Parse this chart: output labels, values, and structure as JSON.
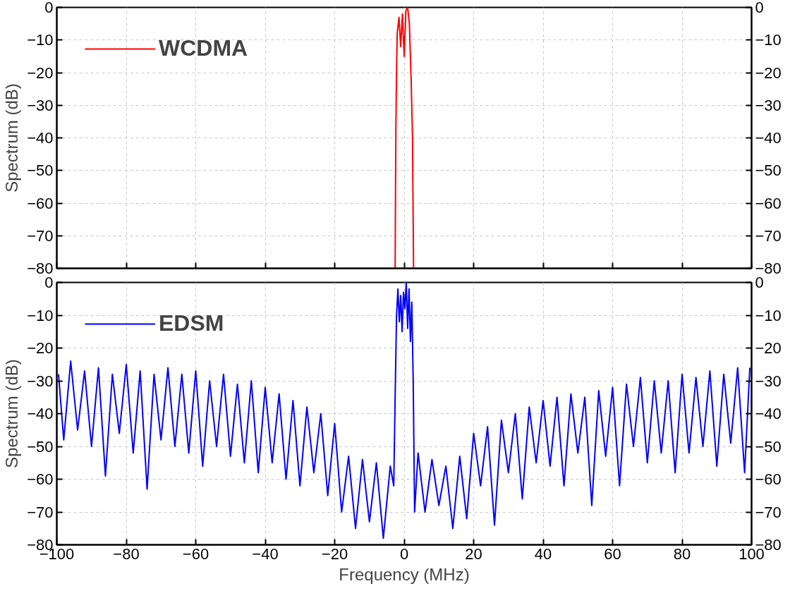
{
  "chart_data": [
    {
      "type": "line",
      "ylabel": "Spectrum (dB)",
      "xlim": [
        -100,
        100
      ],
      "xticks": [
        -100,
        -80,
        -60,
        -40,
        -20,
        0,
        20,
        40,
        60,
        80,
        100
      ],
      "ylim": [
        -80,
        0
      ],
      "yticks": [
        -80,
        -70,
        -60,
        -50,
        -40,
        -30,
        -20,
        -10,
        0
      ],
      "y2lim": [
        -80,
        0
      ],
      "y2ticks": [
        -80,
        -70,
        -60,
        -50,
        -40,
        -30,
        -20,
        -10,
        0
      ],
      "tick_labels": "y",
      "grid": true,
      "legend": "top left",
      "x": [
        -2.6,
        -2.4,
        -2.2,
        -2,
        -1.5,
        -1,
        -0.5,
        0,
        0.5,
        1,
        1.5,
        2,
        2.4,
        2.7
      ],
      "series": [
        {
          "name": "WCDMA",
          "color": "#ff0000",
          "values": [
            -80,
            -38,
            -20,
            -8,
            -3,
            -12,
            -2,
            -15,
            -1,
            0,
            -5,
            -22,
            -40,
            -80
          ]
        }
      ]
    },
    {
      "type": "line",
      "xlabel": "Frequency (MHz)",
      "ylabel": "Spectrum (dB)",
      "xlim": [
        -100,
        100
      ],
      "xticks": [
        -100,
        -80,
        -60,
        -40,
        -20,
        0,
        20,
        40,
        60,
        80,
        100
      ],
      "ylim": [
        -80,
        0
      ],
      "yticks": [
        -80,
        -70,
        -60,
        -50,
        -40,
        -30,
        -20,
        -10,
        0
      ],
      "y2lim": [
        -80,
        0
      ],
      "y2ticks": [
        -80,
        -70,
        -60,
        -50,
        -40,
        -30,
        -20,
        -10,
        0
      ],
      "grid": true,
      "legend": "top left",
      "x": [
        -99.5,
        -98,
        -96,
        -94,
        -92,
        -90,
        -88,
        -86,
        -84,
        -82,
        -80,
        -78,
        -76,
        -74,
        -72,
        -70,
        -68,
        -66,
        -64,
        -62,
        -60,
        -58,
        -56,
        -54,
        -52,
        -50,
        -48,
        -46,
        -44,
        -42,
        -40,
        -38,
        -36,
        -34,
        -32,
        -30,
        -28,
        -26,
        -24,
        -22,
        -20,
        -18,
        -16,
        -14,
        -12,
        -10,
        -8,
        -6,
        -4,
        -3,
        -2.6,
        -2.2,
        -1.8,
        -1.4,
        -1,
        -0.6,
        -0.2,
        0.2,
        0.6,
        1,
        1.4,
        1.8,
        2.2,
        2.6,
        3,
        4,
        6,
        8,
        10,
        12,
        14,
        16,
        18,
        20,
        22,
        24,
        26,
        28,
        30,
        32,
        34,
        36,
        38,
        40,
        42,
        44,
        46,
        48,
        50,
        52,
        54,
        56,
        58,
        60,
        62,
        64,
        66,
        68,
        70,
        72,
        74,
        76,
        78,
        80,
        82,
        84,
        86,
        88,
        90,
        92,
        94,
        96,
        98,
        99.5
      ],
      "series": [
        {
          "name": "EDSM",
          "color": "#0000ff",
          "values": [
            -28,
            -48,
            -24,
            -45,
            -27,
            -50,
            -26,
            -59,
            -28,
            -46,
            -25,
            -52,
            -27,
            -63,
            -28,
            -48,
            -26,
            -50,
            -28,
            -52,
            -27,
            -56,
            -30,
            -50,
            -28,
            -53,
            -31,
            -55,
            -30,
            -58,
            -32,
            -55,
            -34,
            -60,
            -36,
            -62,
            -38,
            -58,
            -40,
            -65,
            -43,
            -70,
            -53,
            -75,
            -54,
            -73,
            -55,
            -78,
            -56,
            -62,
            -35,
            -10,
            -2,
            -12,
            -4,
            -15,
            -3,
            -8,
            0,
            -14,
            -2,
            -18,
            -6,
            -30,
            -70,
            -52,
            -70,
            -54,
            -68,
            -56,
            -75,
            -53,
            -72,
            -46,
            -62,
            -44,
            -74,
            -42,
            -58,
            -40,
            -66,
            -38,
            -55,
            -36,
            -56,
            -35,
            -62,
            -34,
            -52,
            -35,
            -68,
            -33,
            -53,
            -32,
            -62,
            -31,
            -50,
            -29,
            -55,
            -30,
            -52,
            -30,
            -58,
            -28,
            -52,
            -29,
            -50,
            -27,
            -56,
            -28,
            -49,
            -26,
            -58,
            -26
          ]
        }
      ]
    }
  ]
}
